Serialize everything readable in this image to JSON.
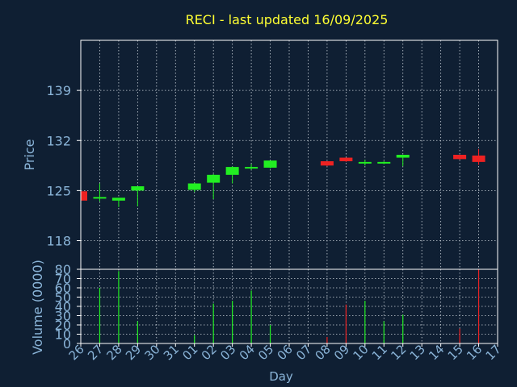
{
  "chart_data": [
    {
      "type": "candlestick",
      "title": "RECI - last updated 16/09/2025",
      "ylabel": "Price",
      "xlabel": "",
      "ylim": [
        114,
        146
      ],
      "yticks": [
        118,
        125,
        132,
        139
      ],
      "grid": true,
      "categories": [
        "26",
        "27",
        "28",
        "29",
        "30",
        "31",
        "01",
        "02",
        "03",
        "04",
        "05",
        "06",
        "07",
        "08",
        "09",
        "10",
        "11",
        "12",
        "13",
        "14",
        "15",
        "16",
        "17"
      ],
      "candles": [
        {
          "day": "26",
          "open": 124.9,
          "high": 125.0,
          "low": 123.4,
          "close": 123.6
        },
        {
          "day": "27",
          "open": 123.9,
          "high": 126.0,
          "low": 123.5,
          "close": 124.1
        },
        {
          "day": "28",
          "open": 123.6,
          "high": 124.0,
          "low": 122.7,
          "close": 124.0
        },
        {
          "day": "29",
          "open": 125.0,
          "high": 125.6,
          "low": 122.8,
          "close": 125.6
        },
        {
          "day": "01",
          "open": 125.1,
          "high": 126.1,
          "low": 124.8,
          "close": 126.0
        },
        {
          "day": "02",
          "open": 126.1,
          "high": 127.3,
          "low": 123.8,
          "close": 127.2
        },
        {
          "day": "03",
          "open": 127.2,
          "high": 128.4,
          "low": 126.0,
          "close": 128.3
        },
        {
          "day": "04",
          "open": 128.1,
          "high": 128.7,
          "low": 127.9,
          "close": 128.3
        },
        {
          "day": "05",
          "open": 128.2,
          "high": 129.2,
          "low": 128.1,
          "close": 129.2
        },
        {
          "day": "08",
          "open": 129.1,
          "high": 129.1,
          "low": 128.4,
          "close": 128.5
        },
        {
          "day": "09",
          "open": 129.6,
          "high": 129.6,
          "low": 129.0,
          "close": 129.1
        },
        {
          "day": "10",
          "open": 128.9,
          "high": 129.3,
          "low": 128.5,
          "close": 129.0
        },
        {
          "day": "11",
          "open": 128.9,
          "high": 129.1,
          "low": 128.7,
          "close": 129.0
        },
        {
          "day": "12",
          "open": 129.6,
          "high": 130.0,
          "low": 128.4,
          "close": 130.0
        },
        {
          "day": "15",
          "open": 130.0,
          "high": 130.0,
          "low": 129.3,
          "close": 129.4
        },
        {
          "day": "16",
          "open": 129.9,
          "high": 130.8,
          "low": 128.6,
          "close": 129.0
        }
      ]
    },
    {
      "type": "bar",
      "ylabel": "Volume (0000)",
      "xlabel": "Day",
      "ylim": [
        0,
        80
      ],
      "yticks": [
        0,
        10,
        20,
        30,
        40,
        50,
        60,
        70,
        80
      ],
      "grid": true,
      "categories": [
        "26",
        "27",
        "28",
        "29",
        "30",
        "31",
        "01",
        "02",
        "03",
        "04",
        "05",
        "06",
        "07",
        "08",
        "09",
        "10",
        "11",
        "12",
        "13",
        "14",
        "15",
        "16",
        "17"
      ],
      "values": [
        {
          "day": "27",
          "value": 60,
          "direction": "up"
        },
        {
          "day": "28",
          "value": 78,
          "direction": "up"
        },
        {
          "day": "29",
          "value": 24,
          "direction": "up"
        },
        {
          "day": "01",
          "value": 9,
          "direction": "up"
        },
        {
          "day": "02",
          "value": 43,
          "direction": "up"
        },
        {
          "day": "03",
          "value": 46,
          "direction": "up"
        },
        {
          "day": "04",
          "value": 57,
          "direction": "up"
        },
        {
          "day": "05",
          "value": 20,
          "direction": "up"
        },
        {
          "day": "08",
          "value": 7,
          "direction": "down"
        },
        {
          "day": "09",
          "value": 42,
          "direction": "down"
        },
        {
          "day": "10",
          "value": 46,
          "direction": "up"
        },
        {
          "day": "11",
          "value": 24,
          "direction": "up"
        },
        {
          "day": "12",
          "value": 31,
          "direction": "up"
        },
        {
          "day": "15",
          "value": 16,
          "direction": "down"
        },
        {
          "day": "16",
          "value": 80,
          "direction": "down"
        }
      ]
    }
  ],
  "colors": {
    "background": "#0f1f33",
    "title": "#ffff33",
    "axis_text": "#8ab4d8",
    "grid": "#c8d0d8",
    "up": "#22ee22",
    "down": "#ee2222",
    "frame": "#ffffff"
  }
}
